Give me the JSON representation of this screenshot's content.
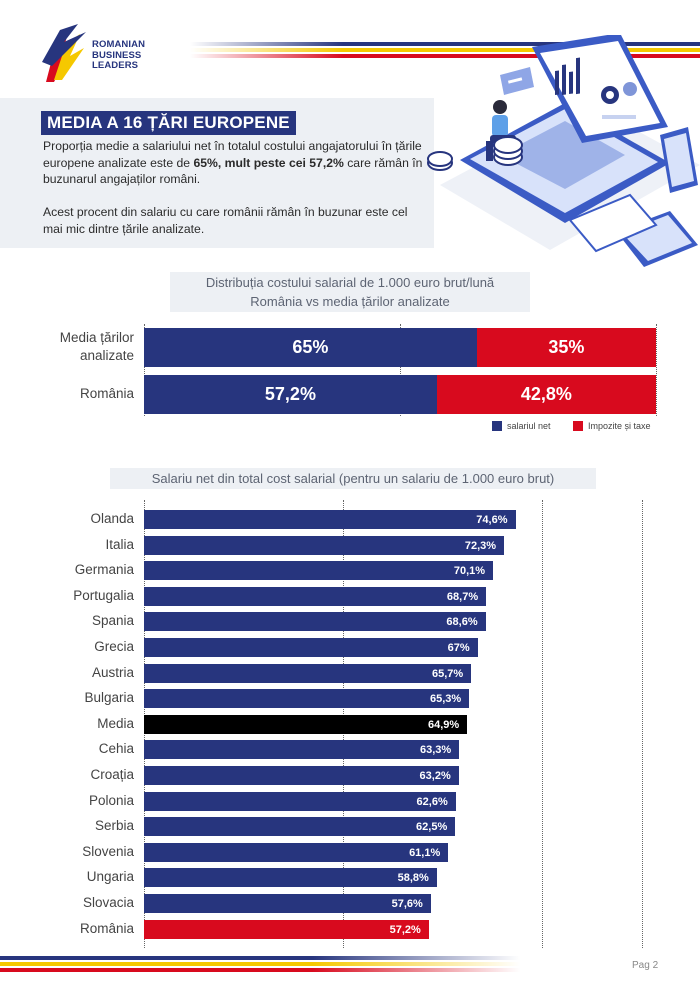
{
  "header": {
    "logo_lines": [
      "ROMANIAN",
      "BUSINESS",
      "LEADERS"
    ]
  },
  "intro": {
    "title": "MEDIA A 16 ȚĂRI EUROPENE",
    "p1_a": "Proporția medie a salariului net în totalul costului angajatorului în țările europene analizate este de ",
    "p1_b": "65%, mult peste cei 57,2%",
    "p1_c": " care rămân în buzunarul angajaților români.",
    "p2": "Acest procent din salariu cu care românii rămân în buzunar este cel mai mic dintre țările analizate."
  },
  "chart_data": [
    {
      "type": "bar",
      "orientation": "horizontal-stacked",
      "title_line1": "Distribuția costului salarial de 1.000 euro brut/lună",
      "title_line2": "România vs media țărilor analizate",
      "categories": [
        {
          "line1": "Media țărilor",
          "line2": "analizate"
        },
        {
          "line1": "România",
          "line2": ""
        }
      ],
      "series": [
        {
          "name": "salariul net",
          "values": [
            65,
            57.2
          ],
          "labels": [
            "65%",
            "57,2%"
          ],
          "color": "#27357e"
        },
        {
          "name": "Impozite și taxe",
          "values": [
            35,
            42.8
          ],
          "labels": [
            "35%",
            "42,8%"
          ],
          "color": "#d80a1e"
        }
      ],
      "xlim": [
        0,
        100
      ],
      "legend": "bottom-right"
    },
    {
      "type": "bar",
      "orientation": "horizontal",
      "title": "Salariu net din total cost salarial (pentru un salariu de 1.000 euro brut)",
      "xlim": [
        0,
        100
      ],
      "categories": [
        "Olanda",
        "Italia",
        "Germania",
        "Portugalia",
        "Spania",
        "Grecia",
        "Austria",
        "Bulgaria",
        "Media",
        "Cehia",
        "Croația",
        "Polonia",
        "Serbia",
        "Slovenia",
        "Ungaria",
        "Slovacia",
        "România"
      ],
      "values": [
        74.6,
        72.3,
        70.1,
        68.7,
        68.6,
        67,
        65.7,
        65.3,
        64.9,
        63.3,
        63.2,
        62.6,
        62.5,
        61.1,
        58.8,
        57.6,
        57.2
      ],
      "labels": [
        "74,6%",
        "72,3%",
        "70,1%",
        "68,7%",
        "68,6%",
        "67%",
        "65,7%",
        "65,3%",
        "64,9%",
        "63,3%",
        "63,2%",
        "62,6%",
        "62,5%",
        "61,1%",
        "58,8%",
        "57,6%",
        "57,2%"
      ],
      "colors": {
        "default": "#27357e",
        "Media": "#000000",
        "România": "#d80a1e"
      }
    }
  ],
  "footer": {
    "page": "Pag 2"
  }
}
